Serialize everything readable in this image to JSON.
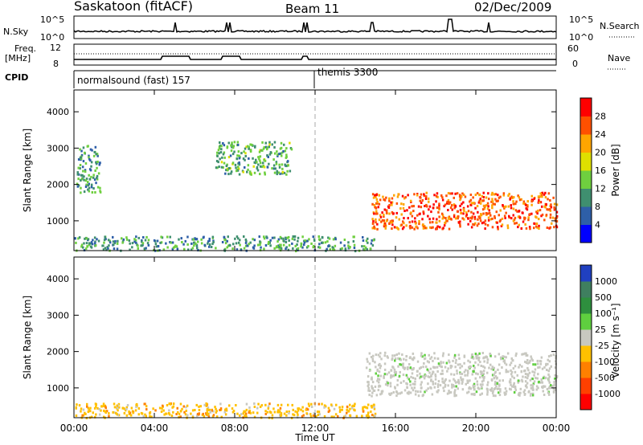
{
  "header": {
    "title": "Saskatoon (fitACF)",
    "beam": "Beam 11",
    "date": "02/Dec/2009"
  },
  "top_panels": {
    "nsky_label": "N.Sky",
    "nsky_ticks": [
      "10^5",
      "10^0"
    ],
    "nsearch_label": "N.Search",
    "nsearch_ticks": [
      "10^5",
      "10^0"
    ],
    "freq_label": "Freq.",
    "freq_unit": "[MHz]",
    "freq_ticks": [
      "12",
      "8"
    ],
    "nave_label": "Nave",
    "nave_ticks": [
      "60",
      "0"
    ],
    "cpid_label": "CPID",
    "cpid_segments": [
      {
        "label": "normalsound (fast) 157"
      },
      {
        "label": "themis 3300"
      }
    ]
  },
  "chart_data": [
    {
      "type": "heatmap",
      "name": "power",
      "ylabel": "Slant Range [km]",
      "xlabel": "",
      "x_ticks": [
        "00:00",
        "04:00",
        "08:00",
        "12:00",
        "16:00",
        "20:00",
        "00:00"
      ],
      "x_range_hours": [
        0,
        24
      ],
      "y_ticks": [
        1000,
        2000,
        3000,
        4000
      ],
      "ylim": [
        180,
        4600
      ],
      "colorbar": {
        "label": "Power [dB]",
        "ticks": [
          4,
          8,
          12,
          16,
          20,
          24,
          28
        ],
        "colors": [
          "#0000ff",
          "#2e5fa8",
          "#3f8f6f",
          "#6fcf3f",
          "#dfdf00",
          "#ffa500",
          "#ff5000",
          "#ff0000"
        ]
      },
      "features": [
        {
          "desc": "near-range ground scatter",
          "t_start": 0,
          "t_end": 15,
          "range_km": [
            200,
            600
          ],
          "level_db": 8
        },
        {
          "desc": "early scatter",
          "t_start": 0.1,
          "t_end": 1.3,
          "range_km": [
            1800,
            3100
          ],
          "level_db": 8
        },
        {
          "desc": "patchy F-region scatter",
          "t_start": 7,
          "t_end": 10.8,
          "range_km": [
            2300,
            3200
          ],
          "level_db": 10
        },
        {
          "desc": "dense band",
          "t_start": 14.8,
          "t_end": 24,
          "range_km": [
            800,
            1800
          ],
          "level_db": 24
        }
      ]
    },
    {
      "type": "heatmap",
      "name": "velocity",
      "ylabel": "Slant Range [km]",
      "xlabel": "Time UT",
      "x_ticks": [
        "00:00",
        "04:00",
        "08:00",
        "12:00",
        "16:00",
        "20:00",
        "00:00"
      ],
      "x_range_hours": [
        0,
        24
      ],
      "y_ticks": [
        1000,
        2000,
        3000,
        4000
      ],
      "ylim": [
        180,
        4600
      ],
      "colorbar": {
        "label": "Velocity [m s⁻¹]",
        "ticks": [
          1000,
          500,
          100,
          25,
          -25,
          -100,
          -500,
          -1000
        ],
        "colors": [
          "#2040c0",
          "#3f7f5f",
          "#2e8f3e",
          "#5fcf3f",
          "#c8c8c0",
          "#ffc000",
          "#ff8000",
          "#ff4000",
          "#ff0000"
        ]
      },
      "features": [
        {
          "desc": "ground scatter (gray)",
          "t_start": 14.5,
          "t_end": 24,
          "range_km": [
            800,
            2000
          ],
          "velocity": 0
        },
        {
          "desc": "near-range low-velocity scatter",
          "t_start": 0,
          "t_end": 15,
          "range_km": [
            200,
            600
          ],
          "velocity": -60
        }
      ]
    }
  ]
}
